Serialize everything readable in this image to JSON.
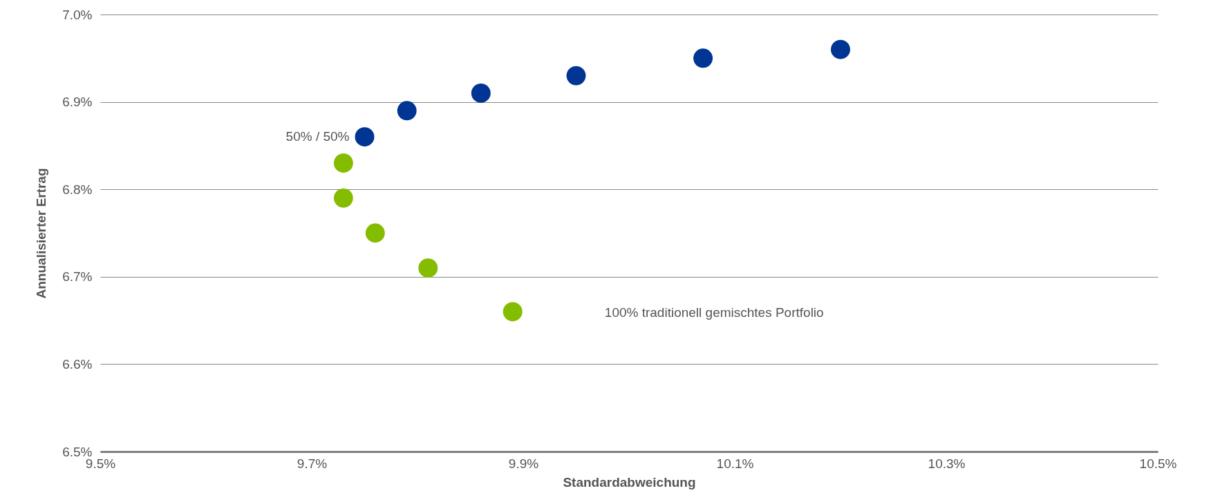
{
  "chart_data": {
    "type": "scatter",
    "xlabel": "Standardabweichung",
    "ylabel": "Annualisierter Ertrag",
    "x": [
      9.89,
      9.81,
      9.76,
      9.73,
      9.73,
      9.75,
      9.79,
      9.86,
      9.95,
      10.07,
      10.2
    ],
    "values": [
      6.66,
      6.71,
      6.75,
      6.79,
      6.83,
      6.86,
      6.89,
      6.91,
      6.93,
      6.95,
      6.96
    ],
    "colors": [
      "#84bd00",
      "#84bd00",
      "#84bd00",
      "#84bd00",
      "#84bd00",
      "#003594",
      "#003594",
      "#003594",
      "#003594",
      "#003594",
      "#003594"
    ],
    "marker": "circle",
    "xlim": [
      9.5,
      10.5
    ],
    "ylim": [
      6.5,
      7.0
    ],
    "xticks": [
      {
        "value": 9.5,
        "label": "9.5%"
      },
      {
        "value": 9.7,
        "label": "9.7%"
      },
      {
        "value": 9.9,
        "label": "9.9%"
      },
      {
        "value": 10.1,
        "label": "10.1%"
      },
      {
        "value": 10.3,
        "label": "10.3%"
      },
      {
        "value": 10.5,
        "label": "10.5%"
      }
    ],
    "yticks": [
      {
        "value": 6.5,
        "label": "6.5%"
      },
      {
        "value": 6.6,
        "label": "6.6%"
      },
      {
        "value": 6.7,
        "label": "6.7%"
      },
      {
        "value": 6.8,
        "label": "6.8%"
      },
      {
        "value": 6.9,
        "label": "6.9%"
      },
      {
        "value": 7.0,
        "label": "7.0%"
      }
    ],
    "grid": "y",
    "legend": false,
    "annotations": [
      {
        "text": "50% / 50%",
        "x": 9.75,
        "y": 6.86
      },
      "100% traditionell gemischtes Portfolio"
    ]
  }
}
